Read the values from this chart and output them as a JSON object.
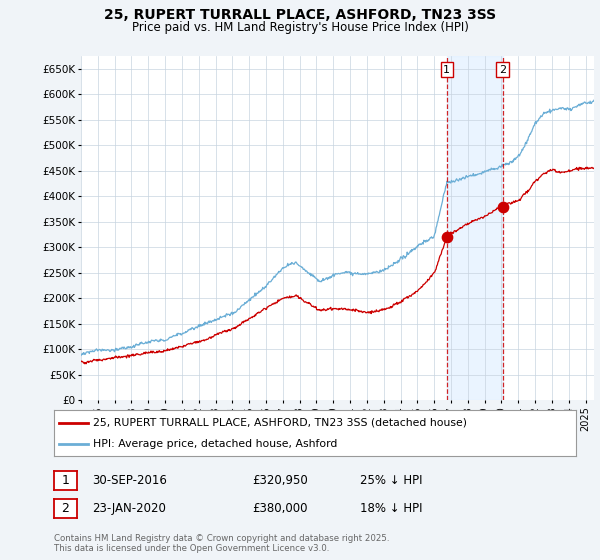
{
  "title": "25, RUPERT TURRALL PLACE, ASHFORD, TN23 3SS",
  "subtitle": "Price paid vs. HM Land Registry's House Price Index (HPI)",
  "ylabel_ticks": [
    "£0",
    "£50K",
    "£100K",
    "£150K",
    "£200K",
    "£250K",
    "£300K",
    "£350K",
    "£400K",
    "£450K",
    "£500K",
    "£550K",
    "£600K",
    "£650K"
  ],
  "ytick_values": [
    0,
    50000,
    100000,
    150000,
    200000,
    250000,
    300000,
    350000,
    400000,
    450000,
    500000,
    550000,
    600000,
    650000
  ],
  "ylim": [
    0,
    675000
  ],
  "xlim_start": 1995.0,
  "xlim_end": 2025.5,
  "xticks": [
    1995,
    1996,
    1997,
    1998,
    1999,
    2000,
    2001,
    2002,
    2003,
    2004,
    2005,
    2006,
    2007,
    2008,
    2009,
    2010,
    2011,
    2012,
    2013,
    2014,
    2015,
    2016,
    2017,
    2018,
    2019,
    2020,
    2021,
    2022,
    2023,
    2024,
    2025
  ],
  "hpi_color": "#6baed6",
  "price_color": "#cc0000",
  "marker1_date": 2016.75,
  "marker1_price": 320950,
  "marker2_date": 2020.06,
  "marker2_price": 380000,
  "legend_line1": "25, RUPERT TURRALL PLACE, ASHFORD, TN23 3SS (detached house)",
  "legend_line2": "HPI: Average price, detached house, Ashford",
  "annotation1_date": "30-SEP-2016",
  "annotation1_price": "£320,950",
  "annotation1_hpi": "25% ↓ HPI",
  "annotation2_date": "23-JAN-2020",
  "annotation2_price": "£380,000",
  "annotation2_hpi": "18% ↓ HPI",
  "footer": "Contains HM Land Registry data © Crown copyright and database right 2025.\nThis data is licensed under the Open Government Licence v3.0.",
  "background_color": "#f0f4f8",
  "plot_bg_color": "#ffffff",
  "grid_color": "#c8d4e0",
  "shade_color": "#ddeeff"
}
